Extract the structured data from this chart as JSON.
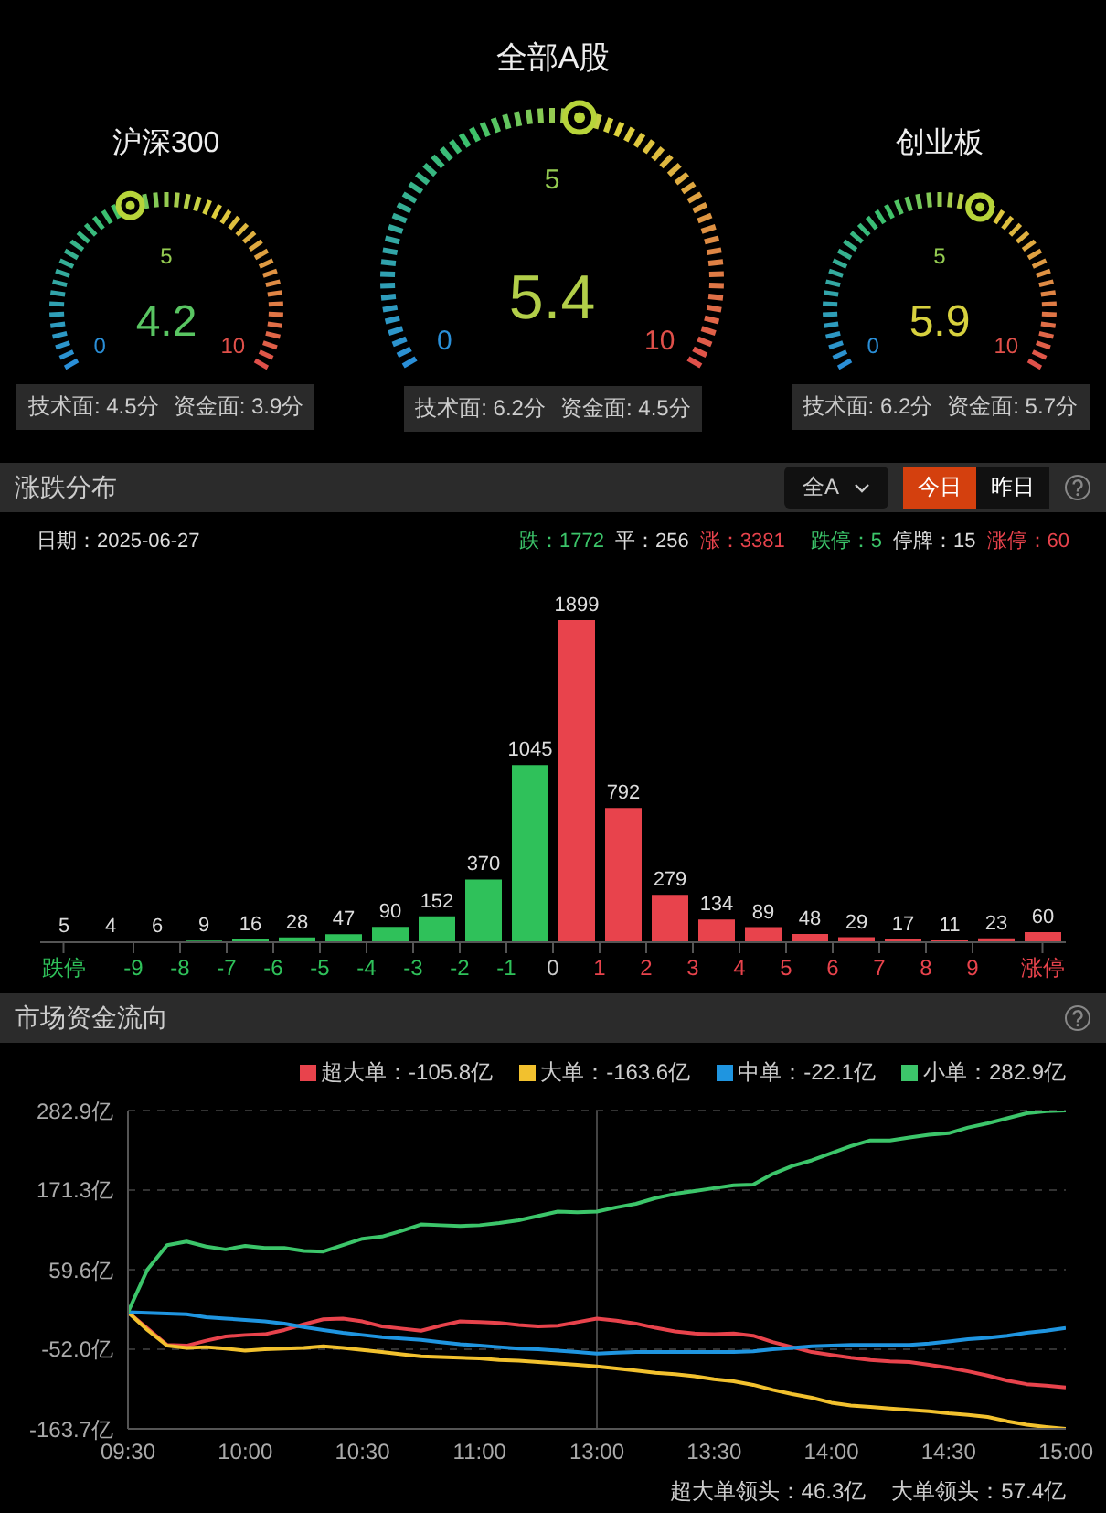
{
  "chart_data": [
    {
      "type": "other",
      "title": "沪深300",
      "values": [
        4.2
      ],
      "data_labels": true,
      "annotations": [
        "0",
        "5",
        "10",
        "技术面: 4.5分",
        "资金面: 3.9分"
      ]
    },
    {
      "type": "other",
      "title": "全部A股",
      "values": [
        5.4
      ],
      "data_labels": true,
      "annotations": [
        "0",
        "5",
        "10",
        "技术面: 6.2分",
        "资金面: 4.5分"
      ]
    },
    {
      "type": "other",
      "title": "创业板",
      "values": [
        5.9
      ],
      "data_labels": true,
      "annotations": [
        "0",
        "5",
        "10",
        "技术面: 6.2分",
        "资金面: 5.7分"
      ]
    },
    {
      "type": "bar",
      "title": "涨跌分布",
      "tick_labels": "x",
      "data_labels": true,
      "x": [
        -10.5,
        -9.5,
        -8.5,
        -7.5,
        -6.5,
        -5.5,
        -4.5,
        -3.5,
        -2.5,
        -1.5,
        -0.5,
        0.5,
        1.5,
        2.5,
        3.5,
        4.5,
        5.5,
        6.5,
        7.5,
        8.5,
        9.5,
        10.5
      ],
      "values": [
        5,
        4,
        6,
        9,
        16,
        28,
        47,
        90,
        152,
        370,
        1045,
        1899,
        792,
        279,
        134,
        89,
        48,
        29,
        17,
        11,
        23,
        60
      ],
      "colors": [
        "#2fc15a",
        "#2fc15a",
        "#2fc15a",
        "#2fc15a",
        "#2fc15a",
        "#2fc15a",
        "#2fc15a",
        "#2fc15a",
        "#2fc15a",
        "#2fc15a",
        "#2fc15a",
        "#e8434c",
        "#e8434c",
        "#e8434c",
        "#e8434c",
        "#e8434c",
        "#e8434c",
        "#e8434c",
        "#e8434c",
        "#e8434c",
        "#e8434c",
        "#e8434c"
      ],
      "xlim": [
        -11,
        11
      ],
      "xticks": [
        {
          "value": -10.5,
          "label": "跌停"
        },
        -9,
        -8,
        -7,
        -6,
        -5,
        -4,
        -3,
        -2,
        -1,
        0,
        1,
        2,
        3,
        4,
        5,
        6,
        7,
        8,
        9,
        {
          "value": 10.5,
          "label": "涨停"
        }
      ],
      "annotations": [
        "日期：2025-06-27",
        "跌：1772",
        "平：256",
        "涨：3381",
        "跌停：5",
        "停牌：15",
        "涨停：60",
        "全A",
        "今日",
        "昨日"
      ]
    },
    {
      "type": "line",
      "title": "市场资金流向",
      "legend": "top right",
      "grid": "y",
      "ylim": [
        -163.7,
        282.9
      ],
      "categories": [
        "09:30",
        null,
        null,
        null,
        null,
        null,
        "10:00",
        null,
        null,
        null,
        null,
        null,
        "10:30",
        null,
        null,
        null,
        null,
        null,
        "11:00",
        null,
        null,
        null,
        null,
        null,
        "13:00",
        null,
        null,
        null,
        null,
        null,
        "13:30",
        null,
        null,
        null,
        null,
        null,
        "14:00",
        null,
        null,
        null,
        null,
        null,
        "14:30",
        null,
        null,
        null,
        null,
        null,
        "15:00"
      ],
      "yticks": [
        {
          "value": 282.9,
          "label": "282.9亿"
        },
        {
          "value": 171.3,
          "label": "171.3亿"
        },
        {
          "value": 59.6,
          "label": "59.6亿"
        },
        {
          "value": -52.0,
          "label": "-52.0亿"
        },
        {
          "value": -163.7,
          "label": "-163.7亿"
        }
      ],
      "ref_lines": [
        {
          "axis": "x",
          "value": "13:00",
          "color": "#444444"
        }
      ],
      "series": [
        {
          "name": "超大单：-105.8亿",
          "color": "#e8434c",
          "values": [
            0,
            -23,
            -46,
            -47,
            -40,
            -34,
            -32,
            -31,
            -25,
            -17,
            -10,
            -9,
            -13,
            -20,
            -23,
            -26,
            -19,
            -13,
            -14,
            -15,
            -18,
            -20,
            -19,
            -14,
            -9,
            -12,
            -16,
            -22,
            -27,
            -30,
            -31,
            -30,
            -33,
            -42,
            -49,
            -56,
            -60,
            -64,
            -67,
            -69,
            -70,
            -74,
            -78,
            -83,
            -89,
            -96,
            -101,
            -103,
            -105.8
          ]
        },
        {
          "name": "大单：-163.6亿",
          "color": "#f2c12e",
          "values": [
            0,
            -25,
            -47,
            -50,
            -49,
            -51,
            -54,
            -52,
            -51,
            -50,
            -48,
            -50,
            -53,
            -56,
            -59,
            -62,
            -63,
            -64,
            -65,
            -67,
            -68,
            -70,
            -72,
            -74,
            -76,
            -79,
            -82,
            -85,
            -87,
            -90,
            -94,
            -97,
            -102,
            -109,
            -115,
            -120,
            -127,
            -131,
            -133,
            -135,
            -137,
            -139,
            -142,
            -144,
            -147,
            -153,
            -158,
            -161,
            -163.6
          ]
        },
        {
          "name": "中单：-22.1亿",
          "color": "#1f95e0",
          "values": [
            0,
            -1,
            -2,
            -3,
            -7,
            -9,
            -11,
            -13,
            -16,
            -21,
            -25,
            -29,
            -32,
            -35,
            -37,
            -39,
            -42,
            -45,
            -47,
            -49,
            -51,
            -52,
            -54,
            -56,
            -58,
            -57,
            -56,
            -56,
            -56,
            -56,
            -56,
            -56,
            -55,
            -52,
            -50,
            -48,
            -47,
            -46,
            -46,
            -46,
            -46,
            -44,
            -41,
            -38,
            -36,
            -33,
            -29,
            -26,
            -22.1
          ]
        },
        {
          "name": "小单：282.9亿",
          "color": "#3cc56a",
          "values": [
            0,
            60,
            94,
            99,
            92,
            88,
            93,
            90,
            90,
            86,
            85,
            94,
            103,
            106,
            114,
            123,
            122,
            121,
            122,
            125,
            129,
            135,
            141,
            140,
            141,
            147,
            152,
            160,
            166,
            170,
            174,
            178,
            179,
            194,
            205,
            213,
            223,
            233,
            241,
            241,
            245,
            249,
            251,
            259,
            265,
            272,
            279,
            282,
            282.9
          ]
        }
      ],
      "annotations": [
        "超大单领头：46.3亿",
        "大单领头：57.4亿"
      ]
    }
  ]
}
